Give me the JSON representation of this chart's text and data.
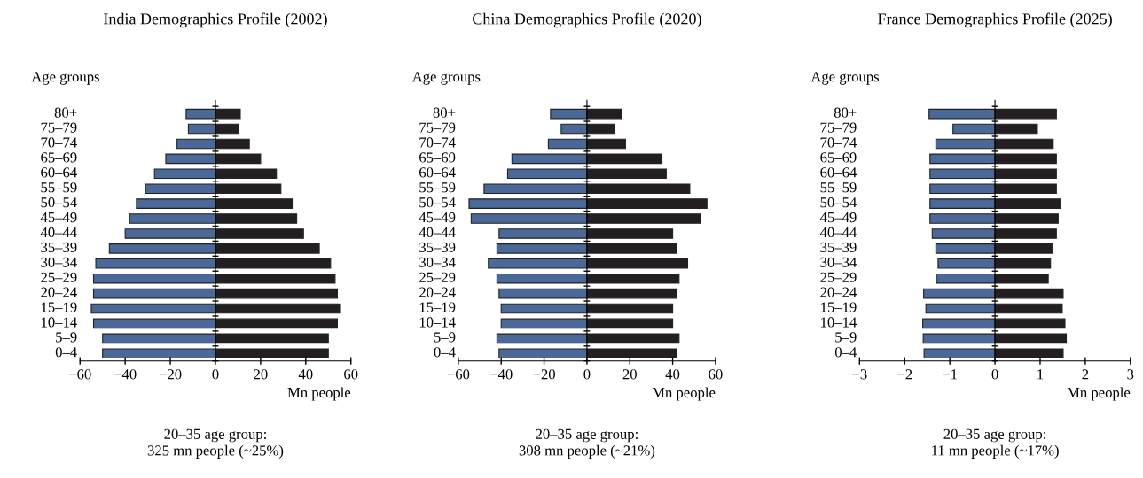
{
  "chart_data": [
    {
      "type": "bar",
      "orientation": "horizontal",
      "title": "India Demographics Profile (2002)",
      "stacked": true,
      "ylabel": "Age groups",
      "xlabel": "Mn people",
      "categories": [
        "80+",
        "75–79",
        "70–74",
        "65–69",
        "60–64",
        "55–59",
        "50–54",
        "45–49",
        "40–44",
        "35–39",
        "30–34",
        "25–29",
        "20–24",
        "15–19",
        "10–14",
        "5–9",
        "0–4"
      ],
      "series": [
        {
          "color": "#4a6898",
          "values": [
            -13,
            -12,
            -17,
            -22,
            -27,
            -31,
            -35,
            -38,
            -40,
            -47,
            -53,
            -54,
            -54,
            -55,
            -54,
            -50,
            -50
          ]
        },
        {
          "color": "#231f20",
          "values": [
            11,
            10,
            15,
            20,
            27,
            29,
            34,
            36,
            39,
            46,
            51,
            53,
            54,
            55,
            54,
            50,
            50
          ]
        }
      ],
      "xlim": [
        -60,
        60
      ],
      "xticks": [
        {
          "value": -60,
          "label": "−60"
        },
        {
          "value": -40,
          "label": "−40"
        },
        {
          "value": -20,
          "label": "−20"
        },
        0,
        20,
        40,
        60
      ],
      "annotations": [
        "20–35 age group:\n325 mn people (~25%)"
      ]
    },
    {
      "type": "bar",
      "orientation": "horizontal",
      "title": "China Demographics Profile (2020)",
      "stacked": true,
      "ylabel": "Age groups",
      "xlabel": "Mn people",
      "categories": [
        "80+",
        "75–79",
        "70–74",
        "65–69",
        "60–64",
        "55–59",
        "50–54",
        "45–49",
        "40–44",
        "35–39",
        "30–34",
        "25–29",
        "20–24",
        "15–19",
        "10–14",
        "5–9",
        "0–4"
      ],
      "series": [
        {
          "color": "#4a6898",
          "values": [
            -17,
            -12,
            -18,
            -35,
            -37,
            -48,
            -55,
            -54,
            -41,
            -42,
            -46,
            -42,
            -41,
            -40,
            -40,
            -42,
            -41
          ]
        },
        {
          "color": "#231f20",
          "values": [
            16,
            13,
            18,
            35,
            37,
            48,
            56,
            53,
            40,
            42,
            47,
            43,
            42,
            40,
            40,
            43,
            42
          ]
        }
      ],
      "xlim": [
        -60,
        60
      ],
      "xticks": [
        {
          "value": -60,
          "label": "−60"
        },
        {
          "value": -40,
          "label": "−40"
        },
        {
          "value": -20,
          "label": "−20"
        },
        0,
        20,
        40,
        60
      ],
      "annotations": [
        "20–35 age group:\n308 mn people (~21%)"
      ]
    },
    {
      "type": "bar",
      "orientation": "horizontal",
      "title": "France Demographics Profile (2025)",
      "stacked": true,
      "ylabel": "Age groups",
      "xlabel": "Mn people",
      "categories": [
        "80+",
        "75–79",
        "70–74",
        "65–69",
        "60–64",
        "55–59",
        "50–54",
        "45–49",
        "40–44",
        "35–39",
        "30–34",
        "25–29",
        "20–24",
        "15–19",
        "10–14",
        "5–9",
        "0–4"
      ],
      "series": [
        {
          "color": "#4a6898",
          "values": [
            -1.46,
            -0.93,
            -1.31,
            -1.44,
            -1.44,
            -1.44,
            -1.44,
            -1.44,
            -1.39,
            -1.31,
            -1.26,
            -1.3,
            -1.58,
            -1.53,
            -1.6,
            -1.59,
            -1.57
          ]
        },
        {
          "color": "#231f20",
          "values": [
            1.36,
            0.94,
            1.29,
            1.36,
            1.36,
            1.36,
            1.44,
            1.4,
            1.36,
            1.27,
            1.23,
            1.18,
            1.51,
            1.49,
            1.55,
            1.58,
            1.51
          ]
        }
      ],
      "xlim": [
        -3,
        3
      ],
      "xticks": [
        {
          "value": -3,
          "label": "−3"
        },
        {
          "value": -2,
          "label": "−2"
        },
        {
          "value": -1,
          "label": "−1"
        },
        0,
        1,
        2,
        3
      ],
      "annotations": [
        "20–35 age group:\n11 mn people (~17%)"
      ]
    }
  ]
}
